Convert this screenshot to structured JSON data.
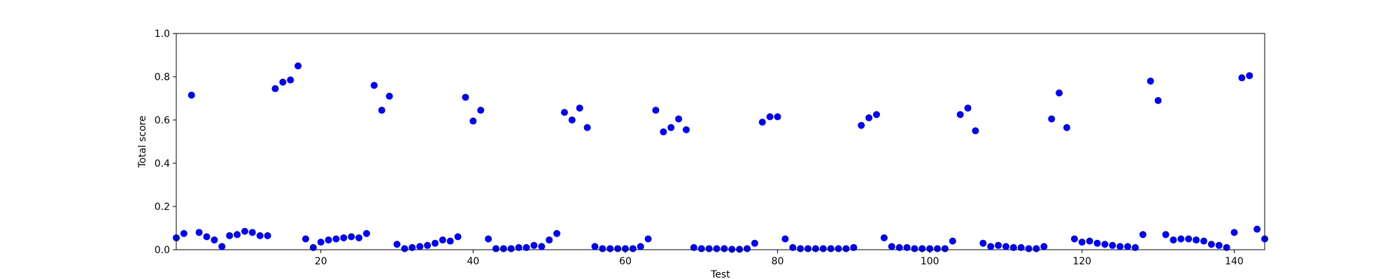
{
  "chart_data": {
    "type": "scatter",
    "xlabel": "Test",
    "ylabel": "Total score",
    "xlim": [
      1,
      144
    ],
    "ylim": [
      0,
      1
    ],
    "xticks": [
      20,
      40,
      60,
      80,
      100,
      120,
      140
    ],
    "yticks": [
      0.0,
      0.2,
      0.4,
      0.6,
      0.8,
      1.0
    ],
    "xtick_labels": [
      "20",
      "40",
      "60",
      "80",
      "100",
      "120",
      "140"
    ],
    "ytick_labels": [
      "0.0",
      "0.2",
      "0.4",
      "0.6",
      "0.8",
      "1.0"
    ],
    "grid": false,
    "marker_color": "#0000ff",
    "series": [
      {
        "x": [
          1,
          2,
          3,
          4,
          5,
          6,
          7,
          8,
          9,
          10,
          11,
          12,
          13,
          14,
          15,
          16,
          17,
          18,
          19,
          20,
          21,
          22,
          23,
          24,
          25,
          26,
          27,
          28,
          29,
          30,
          31,
          32,
          33,
          34,
          35,
          36,
          37,
          38,
          39,
          40,
          41,
          42,
          43,
          44,
          45,
          46,
          47,
          48,
          49,
          50,
          51,
          52,
          53,
          54,
          55,
          56,
          57,
          58,
          59,
          60,
          61,
          62,
          63,
          64,
          65,
          66,
          67,
          68,
          69,
          70,
          71,
          72,
          73,
          74,
          75,
          76,
          77,
          78,
          79,
          80,
          81,
          82,
          83,
          84,
          85,
          86,
          87,
          88,
          89,
          90,
          91,
          92,
          93,
          94,
          95,
          96,
          97,
          98,
          99,
          100,
          101,
          102,
          103,
          104,
          105,
          106,
          107,
          108,
          109,
          110,
          111,
          112,
          113,
          114,
          115,
          116,
          117,
          118,
          119,
          120,
          121,
          122,
          123,
          124,
          125,
          126,
          127,
          128,
          129,
          130,
          131,
          132,
          133,
          134,
          135,
          136,
          137,
          138,
          139,
          140,
          141,
          142,
          143,
          144
        ],
        "y": [
          0.055,
          0.075,
          0.715,
          0.08,
          0.06,
          0.045,
          0.015,
          0.065,
          0.07,
          0.085,
          0.08,
          0.065,
          0.065,
          0.745,
          0.775,
          0.785,
          0.85,
          0.05,
          0.01,
          0.035,
          0.045,
          0.05,
          0.055,
          0.06,
          0.055,
          0.075,
          0.76,
          0.645,
          0.71,
          0.025,
          0.005,
          0.01,
          0.015,
          0.02,
          0.03,
          0.045,
          0.04,
          0.06,
          0.705,
          0.595,
          0.645,
          0.05,
          0.005,
          0.005,
          0.005,
          0.01,
          0.01,
          0.02,
          0.015,
          0.045,
          0.075,
          0.635,
          0.6,
          0.655,
          0.565,
          0.015,
          0.005,
          0.005,
          0.005,
          0.005,
          0.005,
          0.015,
          0.05,
          0.645,
          0.545,
          0.565,
          0.605,
          0.555,
          0.01,
          0.005,
          0.005,
          0.005,
          0.005,
          0.002,
          0.002,
          0.005,
          0.03,
          0.59,
          0.615,
          0.615,
          0.05,
          0.01,
          0.005,
          0.005,
          0.005,
          0.005,
          0.005,
          0.005,
          0.005,
          0.01,
          0.575,
          0.61,
          0.625,
          0.055,
          0.015,
          0.01,
          0.01,
          0.005,
          0.005,
          0.005,
          0.005,
          0.005,
          0.04,
          0.625,
          0.655,
          0.55,
          0.03,
          0.015,
          0.02,
          0.015,
          0.01,
          0.01,
          0.005,
          0.005,
          0.015,
          0.605,
          0.725,
          0.565,
          0.05,
          0.035,
          0.04,
          0.03,
          0.025,
          0.02,
          0.015,
          0.015,
          0.01,
          0.07,
          0.78,
          0.69,
          0.07,
          0.045,
          0.05,
          0.05,
          0.045,
          0.04,
          0.025,
          0.02,
          0.01,
          0.08,
          0.795,
          0.805,
          0.095,
          0.05
        ]
      }
    ]
  }
}
